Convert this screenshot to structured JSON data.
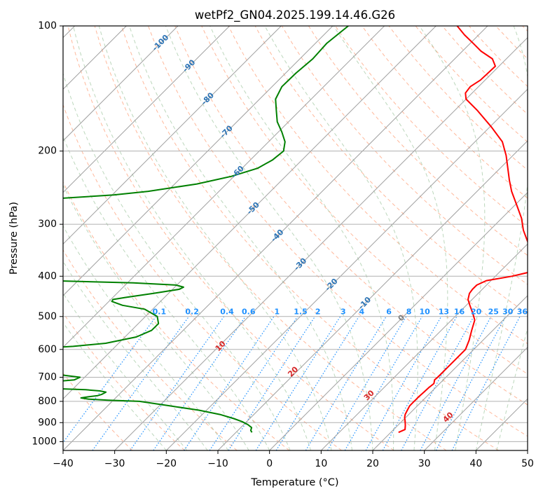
{
  "chart_data": {
    "type": "line",
    "title": "wetPf2_GN04.2025.199.14.46.G26",
    "xlabel": "Temperature (°C)",
    "ylabel": "Pressure (hPa)",
    "xlim": [
      -40,
      50
    ],
    "ylim": [
      1050,
      100
    ],
    "y_scale": "log",
    "x_ticks": [
      "−40",
      "−30",
      "−20",
      "−10",
      "0",
      "10",
      "20",
      "30",
      "40",
      "50"
    ],
    "x_tick_values": [
      -40,
      -30,
      -20,
      -10,
      0,
      10,
      20,
      30,
      40,
      50
    ],
    "y_ticks": [
      "100",
      "200",
      "300",
      "400",
      "500",
      "600",
      "700",
      "800",
      "900",
      "1000"
    ],
    "y_tick_values": [
      100,
      200,
      300,
      400,
      500,
      600,
      700,
      800,
      900,
      1000
    ],
    "grid": true,
    "colors": {
      "temperature": "#ff0000",
      "dewpoint": "#008000",
      "isotherm": "#a0a0a0",
      "dry_adiabat": "#ffa07a",
      "moist_adiabat": "#8fbc8f",
      "mixing_ratio": "#1e90ff",
      "isotherm_label": "#2e75b6",
      "dry_adiabat_label": "#d62728",
      "zero_label": "#808080"
    },
    "series": [
      {
        "key": "temperature",
        "pressure": [
          950,
          935,
          915,
          895,
          875,
          860,
          840,
          820,
          800,
          780,
          760,
          740,
          725,
          710,
          700,
          680,
          660,
          640,
          620,
          600,
          570,
          540,
          510,
          490,
          470,
          455,
          440,
          430,
          420,
          410,
          400,
          390,
          380,
          370,
          350,
          330,
          310,
          290,
          270,
          250,
          235,
          220,
          205,
          190,
          175,
          160,
          150,
          145,
          140,
          135,
          125,
          120,
          115,
          110,
          105,
          100
        ],
        "temp": [
          21.5,
          22.2,
          21.5,
          20.7,
          19.8,
          19.3,
          18.9,
          18.5,
          18.5,
          18.5,
          18.6,
          18.7,
          18.9,
          18.3,
          18.4,
          18.4,
          18.4,
          18.4,
          18.4,
          18.4,
          17.3,
          15.9,
          14.5,
          12.7,
          10.7,
          9.2,
          8.3,
          8.1,
          8.1,
          9.1,
          13.2,
          16.1,
          16.9,
          16.4,
          13.0,
          9.5,
          6.5,
          3.8,
          0.4,
          -3.3,
          -5.9,
          -8.5,
          -11.3,
          -14.7,
          -19.7,
          -25.5,
          -30.0,
          -31.3,
          -31.6,
          -30.9,
          -30.7,
          -32.7,
          -36.4,
          -39.5,
          -42.8,
          -45.9
        ]
      },
      {
        "key": "dewpoint",
        "pressure": [
          950,
          940,
          925,
          910,
          895,
          880,
          860,
          840,
          820,
          800,
          795,
          790,
          785,
          780,
          775,
          770,
          760,
          755,
          750,
          745,
          740,
          730,
          720,
          710,
          700,
          690,
          680,
          660,
          640,
          620,
          610,
          600,
          590,
          580,
          560,
          540,
          520,
          500,
          480,
          470,
          460,
          455,
          450,
          440,
          430,
          425,
          420,
          415,
          410,
          408,
          405,
          380,
          360,
          340,
          320,
          300,
          290,
          280,
          270,
          260,
          255,
          250,
          240,
          230,
          220,
          210,
          200,
          190,
          180,
          170,
          160,
          150,
          140,
          130,
          120,
          110,
          100
        ],
        "dewp": [
          -6.9,
          -7.5,
          -7.9,
          -9.2,
          -10.9,
          -13.1,
          -16.6,
          -21.5,
          -28.0,
          -34.7,
          -41.0,
          -45.0,
          -46.7,
          -45.5,
          -43.9,
          -43.4,
          -43.0,
          -44.4,
          -47.4,
          -53.8,
          -66.3,
          -62.3,
          -56.5,
          -51.5,
          -50.9,
          -55.4,
          -61.1,
          -70.5,
          -78.4,
          -85.2,
          -79.4,
          -67.4,
          -58.2,
          -52.5,
          -47.8,
          -46.1,
          -46.1,
          -47.7,
          -51.6,
          -56.6,
          -59.4,
          -59.6,
          -57.6,
          -52.9,
          -48.7,
          -48.3,
          -50.2,
          -58.9,
          -75.8,
          -84.1,
          -89.5,
          -97.8,
          -101.7,
          -104.9,
          -107.3,
          -108.6,
          -107.5,
          -104.3,
          -99.5,
          -89.8,
          -79.7,
          -73.7,
          -65.7,
          -60.5,
          -57.0,
          -55.7,
          -55.3,
          -56.8,
          -59.3,
          -62.2,
          -64.5,
          -66.9,
          -68.1,
          -68.0,
          -67.5,
          -67.8,
          -67.0
        ]
      }
    ],
    "isotherm_labels": [
      "-100",
      "-90",
      "-80",
      "-70",
      "-60",
      "-50",
      "-40",
      "-30",
      "-20",
      "-10"
    ],
    "isotherm_label_values": [
      -100,
      -90,
      -80,
      -70,
      -60,
      -50,
      -40,
      -30,
      -20,
      -10
    ],
    "zero_label": "0",
    "dry_adiabat_labels": [
      "10",
      "20",
      "30",
      "40"
    ],
    "dry_adiabat_label_values": [
      10,
      20,
      30,
      40
    ],
    "mixing_ratio_labels": [
      "0.1",
      "0.2",
      "0.4",
      "0.6",
      "1",
      "1.5",
      "2",
      "3",
      "4",
      "6",
      "8",
      "10",
      "13",
      "16",
      "20",
      "25",
      "30",
      "36"
    ],
    "mixing_ratio_values": [
      0.1,
      0.2,
      0.4,
      0.6,
      1,
      1.5,
      2,
      3,
      4,
      6,
      8,
      10,
      13,
      16,
      20,
      25,
      30,
      36
    ]
  }
}
